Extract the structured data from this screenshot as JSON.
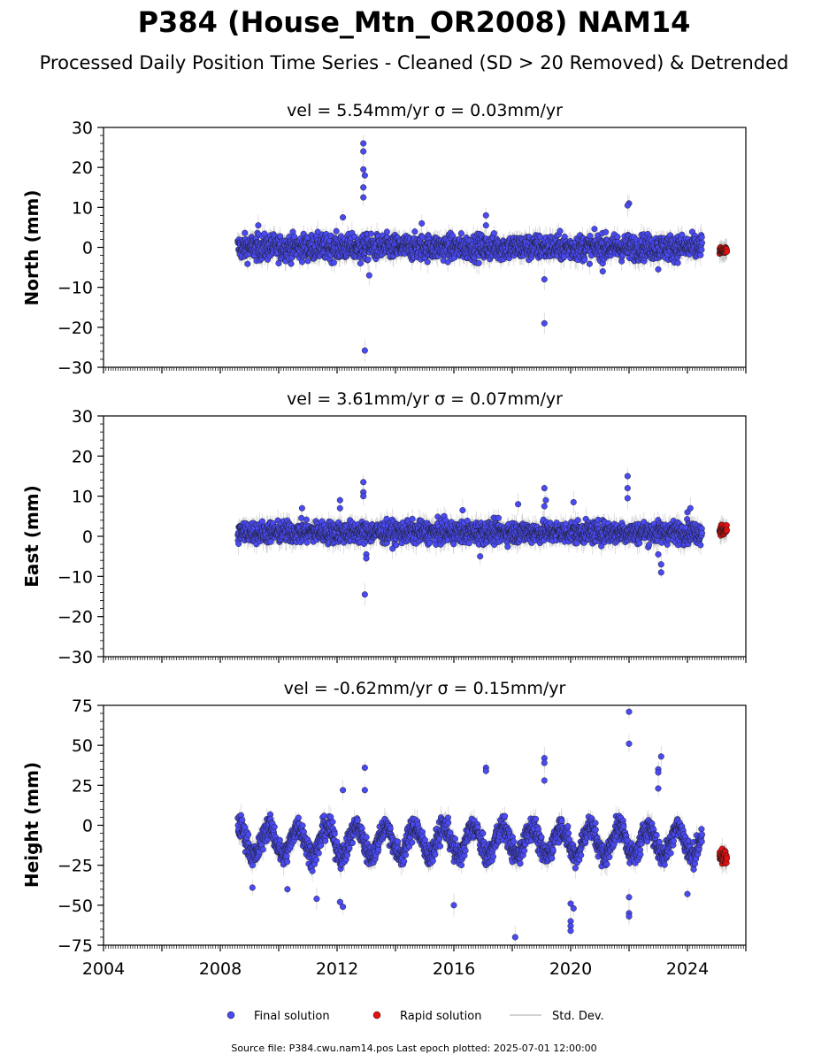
{
  "figure": {
    "title": "P384 (House_Mtn_OR2008) NAM14",
    "subtitle": "Processed Daily Position Time Series - Cleaned (SD > 20 Removed) & Detrended",
    "footer": "Source file: P384.cwu.nam14.pos  Last epoch plotted: 2025-07-01 12:00:00"
  },
  "colors": {
    "final": "#4a4af2",
    "rapid": "#e51010",
    "stddev": "#c4c4c4",
    "marker_edge": "#1a1a1a"
  },
  "legend": {
    "final_label": "Final solution",
    "rapid_label": "Rapid solution",
    "std_label": "Std. Dev."
  },
  "chart_data": [
    {
      "type": "scatter",
      "title": "vel = 5.54mm/yr   σ = 0.03mm/yr",
      "ylabel": "North (mm)",
      "xlim": [
        2004,
        2026
      ],
      "ylim": [
        -30,
        30
      ],
      "yticks": [
        30,
        20,
        10,
        0,
        -10,
        -20,
        -30
      ],
      "ytick_labels": [
        "30",
        "20",
        "10",
        "0",
        "−10",
        "−20",
        "−30"
      ],
      "xticks": [
        2004,
        2008,
        2012,
        2016,
        2020,
        2024
      ],
      "xtick_labels": [],
      "grid": false,
      "series": [
        {
          "name": "Final solution",
          "kind": "final",
          "x_range": [
            2008.6,
            2024.5
          ],
          "band_center": 0,
          "band_half_width": 3.5,
          "points": [
            [
              2012.9,
              26
            ],
            [
              2012.9,
              24
            ],
            [
              2012.9,
              19.5
            ],
            [
              2012.95,
              18
            ],
            [
              2012.9,
              15
            ],
            [
              2012.9,
              12.5
            ],
            [
              2012.2,
              7.5
            ],
            [
              2017.1,
              8
            ],
            [
              2017.1,
              5.5
            ],
            [
              2022.0,
              11
            ],
            [
              2021.95,
              10.5
            ],
            [
              2014.9,
              6
            ],
            [
              2009.3,
              5.5
            ],
            [
              2019.1,
              -19
            ],
            [
              2012.95,
              -25.8
            ],
            [
              2013.1,
              -7
            ],
            [
              2019.1,
              -8
            ],
            [
              2023.0,
              -5.5
            ],
            [
              2021.1,
              -6
            ],
            [
              2012.8,
              -4
            ]
          ]
        },
        {
          "name": "Rapid solution",
          "kind": "rapid",
          "x_range": [
            2025.1,
            2025.35
          ],
          "band_center": -0.8,
          "band_half_width": 1.2,
          "points": []
        }
      ]
    },
    {
      "type": "scatter",
      "title": "vel = 3.61mm/yr   σ = 0.07mm/yr",
      "ylabel": "East (mm)",
      "xlim": [
        2004,
        2026
      ],
      "ylim": [
        -30,
        30
      ],
      "yticks": [
        30,
        20,
        10,
        0,
        -10,
        -20,
        -30
      ],
      "ytick_labels": [
        "30",
        "20",
        "10",
        "0",
        "−10",
        "−20",
        "−30"
      ],
      "xticks": [
        2004,
        2008,
        2012,
        2016,
        2020,
        2024
      ],
      "xtick_labels": [],
      "grid": false,
      "series": [
        {
          "name": "Final solution",
          "kind": "final",
          "x_range": [
            2008.6,
            2024.5
          ],
          "band_center": 1,
          "band_half_width": 3,
          "points": [
            [
              2012.9,
              13.5
            ],
            [
              2012.9,
              11
            ],
            [
              2012.9,
              10
            ],
            [
              2019.1,
              12
            ],
            [
              2019.15,
              9
            ],
            [
              2019.1,
              7.5
            ],
            [
              2021.95,
              15
            ],
            [
              2021.95,
              12
            ],
            [
              2021.95,
              9.5
            ],
            [
              2020.1,
              8.5
            ],
            [
              2018.2,
              8
            ],
            [
              2012.1,
              9
            ],
            [
              2012.1,
              7
            ],
            [
              2010.8,
              7
            ],
            [
              2023.1,
              -7
            ],
            [
              2023.1,
              -9
            ],
            [
              2023.0,
              -4.5
            ],
            [
              2012.95,
              -14.5
            ],
            [
              2013.0,
              -4.5
            ],
            [
              2013.0,
              -5.5
            ],
            [
              2016.9,
              -5
            ],
            [
              2016.3,
              6.5
            ],
            [
              2024.0,
              6
            ],
            [
              2024.1,
              7
            ]
          ]
        },
        {
          "name": "Rapid solution",
          "kind": "rapid",
          "x_range": [
            2025.1,
            2025.35
          ],
          "band_center": 1.5,
          "band_half_width": 1.5,
          "points": []
        }
      ]
    },
    {
      "type": "scatter",
      "title": "vel = -0.62mm/yr   σ = 0.15mm/yr",
      "ylabel": "Height (mm)",
      "xlim": [
        2004,
        2026
      ],
      "ylim": [
        -75,
        75
      ],
      "yticks": [
        75,
        50,
        25,
        0,
        -25,
        -50,
        -75
      ],
      "ytick_labels": [
        "75",
        "50",
        "25",
        "0",
        "−25",
        "−50",
        "−75"
      ],
      "xticks": [
        2004,
        2008,
        2012,
        2016,
        2020,
        2024
      ],
      "xtick_labels": [
        "2004",
        "2008",
        "2012",
        "2016",
        "2020",
        "2024"
      ],
      "grid": false,
      "series": [
        {
          "name": "Final solution",
          "kind": "final",
          "x_range": [
            2008.6,
            2024.5
          ],
          "band_center": -10,
          "band_half_width": 8,
          "seasonal_amplitude": 9,
          "points": [
            [
              2022.0,
              71
            ],
            [
              2022.0,
              51
            ],
            [
              2023.1,
              43
            ],
            [
              2023.0,
              35
            ],
            [
              2023.0,
              33
            ],
            [
              2023.0,
              23
            ],
            [
              2019.1,
              42
            ],
            [
              2019.1,
              39
            ],
            [
              2019.1,
              28
            ],
            [
              2017.1,
              36
            ],
            [
              2017.1,
              34
            ],
            [
              2012.2,
              22
            ],
            [
              2012.95,
              36
            ],
            [
              2012.95,
              22
            ],
            [
              2020.0,
              -60
            ],
            [
              2020.0,
              -63
            ],
            [
              2020.0,
              -66
            ],
            [
              2020.0,
              -49
            ],
            [
              2020.1,
              -52
            ],
            [
              2018.1,
              -70
            ],
            [
              2012.1,
              -48
            ],
            [
              2012.2,
              -51
            ],
            [
              2016.0,
              -50
            ],
            [
              2022.0,
              -55
            ],
            [
              2022.0,
              -57
            ],
            [
              2022.0,
              -45
            ],
            [
              2009.1,
              -39
            ],
            [
              2010.3,
              -40
            ],
            [
              2024.0,
              -43
            ],
            [
              2011.3,
              -46
            ]
          ]
        },
        {
          "name": "Rapid solution",
          "kind": "rapid",
          "x_range": [
            2025.1,
            2025.35
          ],
          "band_center": -20,
          "band_half_width": 5,
          "points": []
        }
      ]
    }
  ]
}
